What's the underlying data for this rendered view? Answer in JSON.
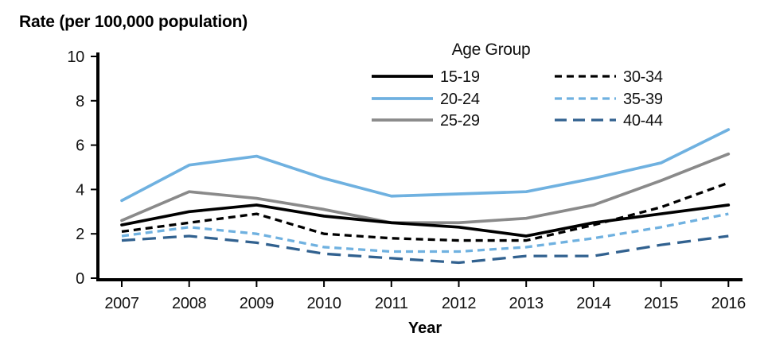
{
  "header": {
    "title": "Rate (per 100,000 population)"
  },
  "chart_data": {
    "type": "line",
    "title": "Rate (per 100,000 population)",
    "xlabel": "Year",
    "ylabel": "Rate (per 100,000 population)",
    "x": [
      2007,
      2008,
      2009,
      2010,
      2011,
      2012,
      2013,
      2014,
      2015,
      2016
    ],
    "ylim": [
      0,
      10
    ],
    "yticks": [
      0,
      2,
      4,
      6,
      8,
      10
    ],
    "grid": false,
    "legend": {
      "title": "Age Group",
      "position": "top-center",
      "columns": 2
    },
    "series": [
      {
        "name": "15-19",
        "color": "#000000",
        "style": "solid",
        "values": [
          2.4,
          3.0,
          3.3,
          2.8,
          2.5,
          2.3,
          1.9,
          2.5,
          2.9,
          3.3
        ]
      },
      {
        "name": "20-24",
        "color": "#6FB1E0",
        "style": "solid",
        "values": [
          3.5,
          5.1,
          5.5,
          4.5,
          3.7,
          3.8,
          3.9,
          4.5,
          5.2,
          6.7
        ]
      },
      {
        "name": "25-29",
        "color": "#8A8A8A",
        "style": "solid",
        "values": [
          2.6,
          3.9,
          3.6,
          3.1,
          2.5,
          2.5,
          2.7,
          3.3,
          4.4,
          5.6
        ]
      },
      {
        "name": "30-34",
        "color": "#000000",
        "style": "dotted",
        "values": [
          2.1,
          2.5,
          2.9,
          2.0,
          1.8,
          1.7,
          1.7,
          2.4,
          3.2,
          4.3
        ]
      },
      {
        "name": "35-39",
        "color": "#6FB1E0",
        "style": "dotted",
        "values": [
          1.9,
          2.3,
          2.0,
          1.4,
          1.2,
          1.2,
          1.4,
          1.8,
          2.3,
          2.9
        ]
      },
      {
        "name": "40-44",
        "color": "#31618F",
        "style": "dashed",
        "values": [
          1.7,
          1.9,
          1.6,
          1.1,
          0.9,
          0.7,
          1.0,
          1.0,
          1.5,
          1.9
        ]
      }
    ]
  }
}
